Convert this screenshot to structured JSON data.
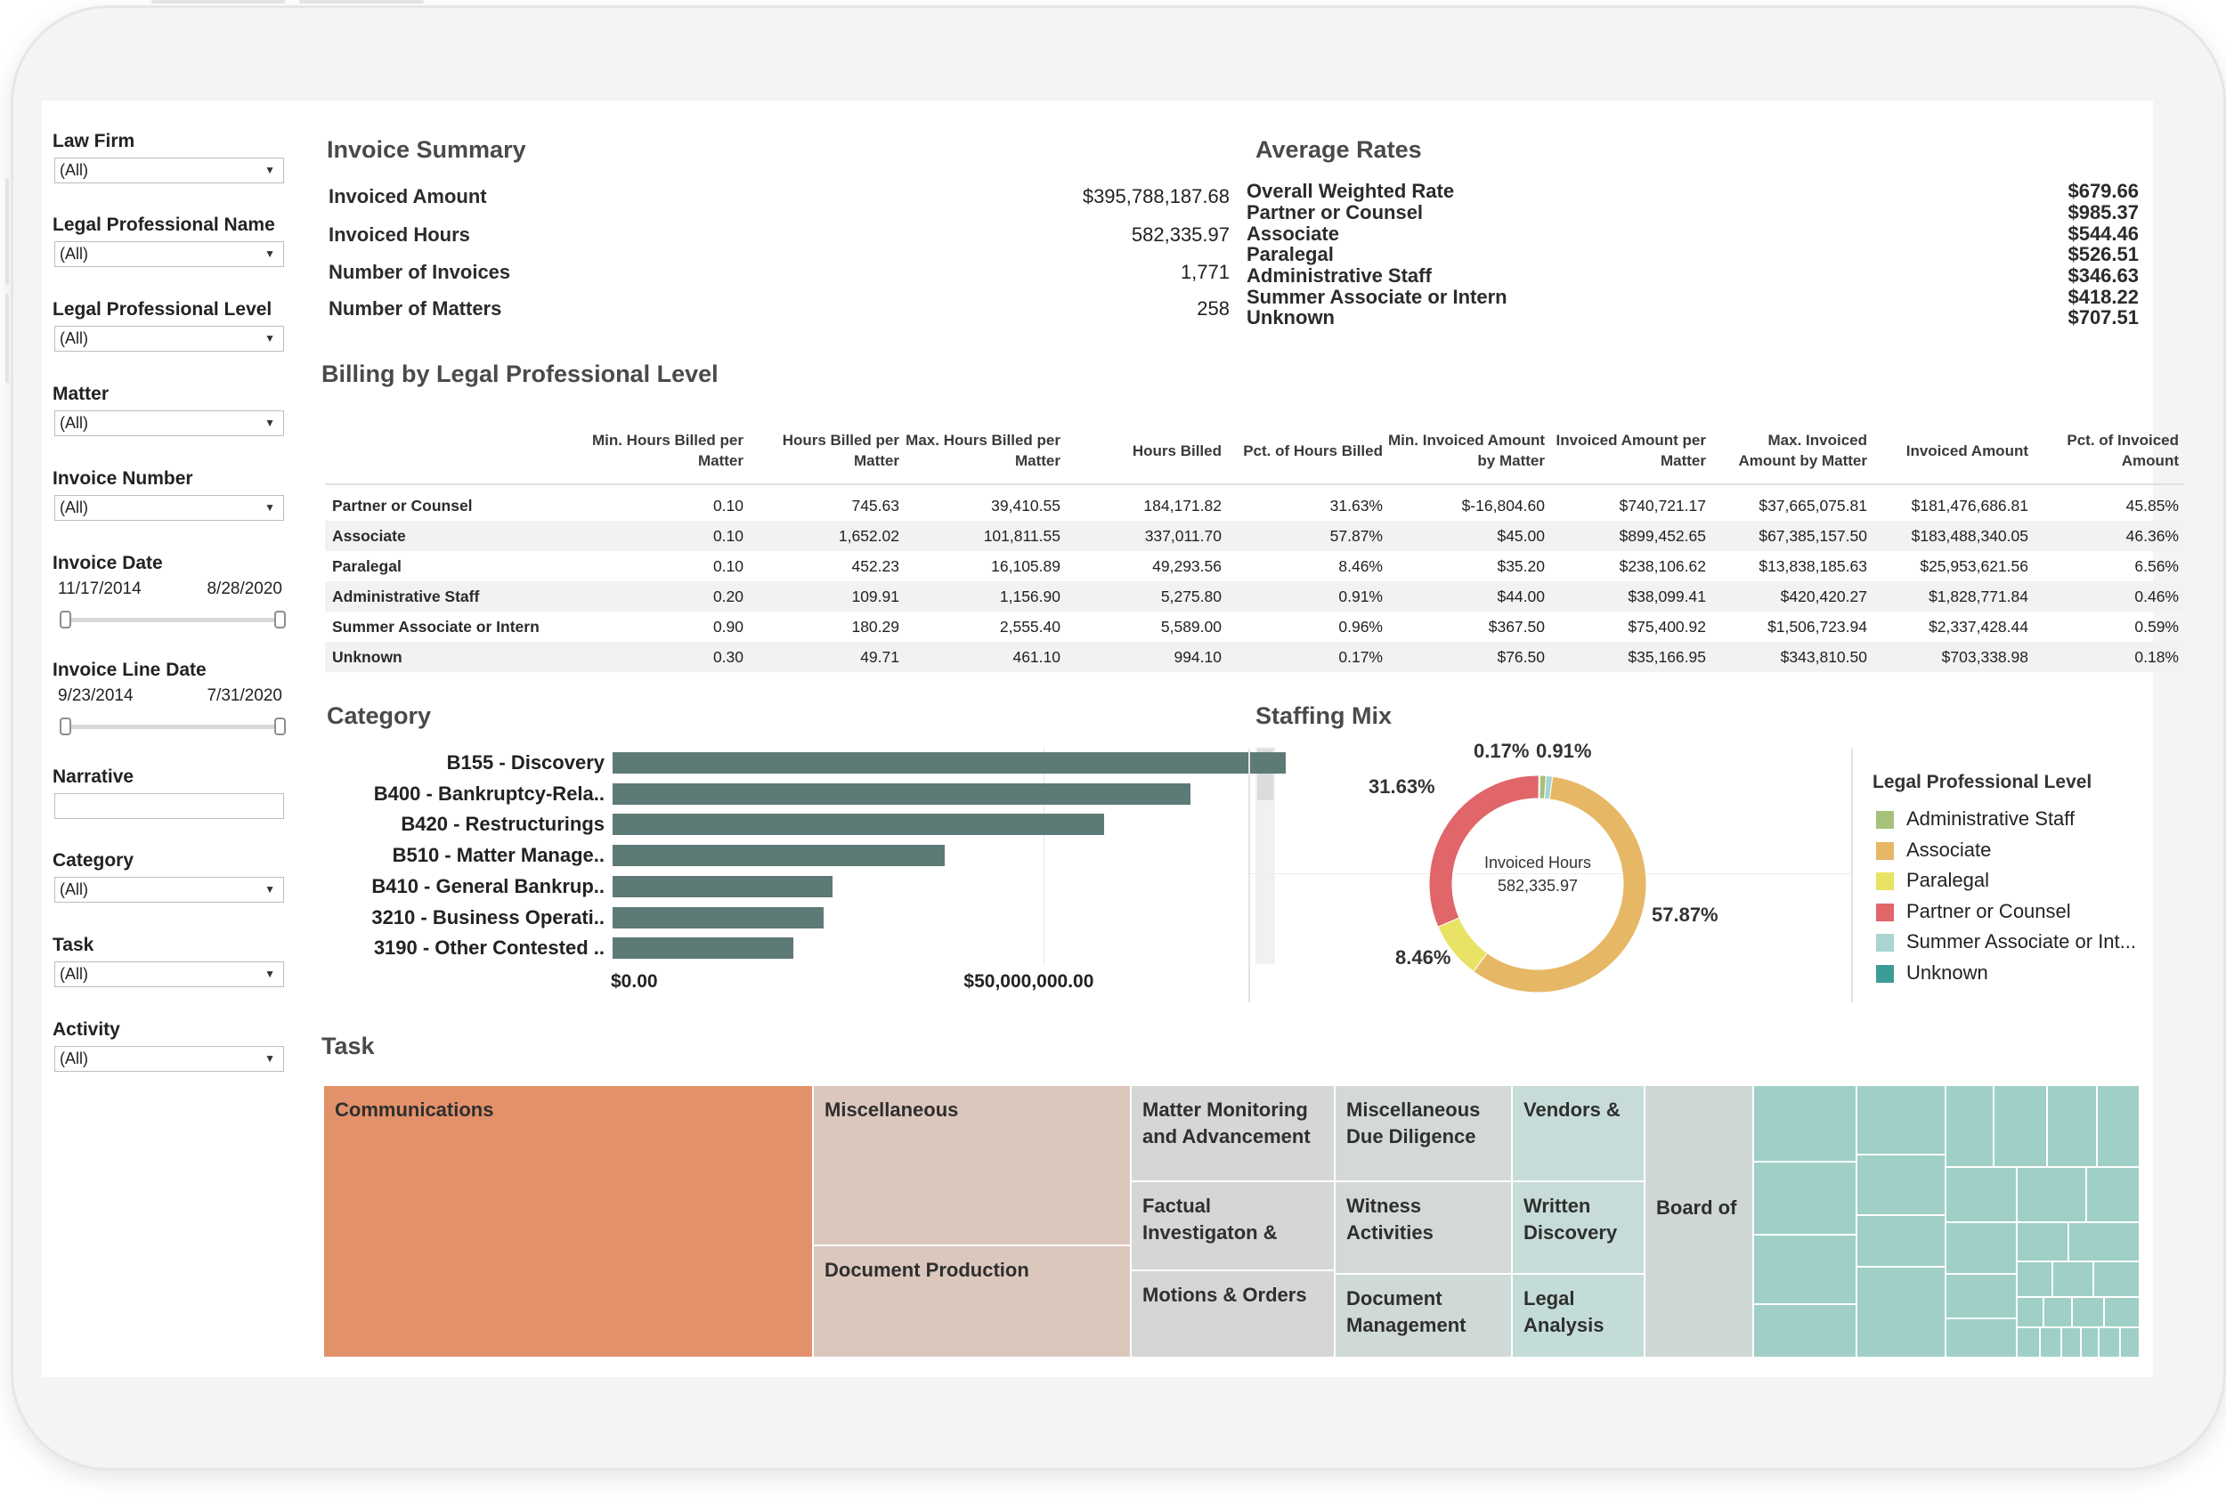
{
  "filters": [
    {
      "label": "Law Firm",
      "value": "(All)"
    },
    {
      "label": "Legal Professional Name",
      "value": "(All)"
    },
    {
      "label": "Legal Professional Level",
      "value": "(All)"
    },
    {
      "label": "Matter",
      "value": "(All)"
    },
    {
      "label": "Invoice Number",
      "value": "(All)"
    },
    {
      "label": "Invoice Date",
      "start": "11/17/2014",
      "end": "8/28/2020"
    },
    {
      "label": "Invoice Line Date",
      "start": "9/23/2014",
      "end": "7/31/2020"
    },
    {
      "label": "Narrative",
      "value": ""
    },
    {
      "label": "Category",
      "value": "(All)"
    },
    {
      "label": "Task",
      "value": "(All)"
    },
    {
      "label": "Activity",
      "value": "(All)"
    }
  ],
  "invoice_summary": {
    "title": "Invoice Summary",
    "rows": [
      {
        "label": "Invoiced Amount",
        "value": "$395,788,187.68"
      },
      {
        "label": "Invoiced Hours",
        "value": "582,335.97"
      },
      {
        "label": "Number of Invoices",
        "value": "1,771"
      },
      {
        "label": "Number of Matters",
        "value": "258"
      }
    ]
  },
  "average_rates": {
    "title": "Average Rates",
    "rows": [
      {
        "label": "Overall Weighted Rate",
        "value": "$679.66"
      },
      {
        "label": "Partner or Counsel",
        "value": "$985.37"
      },
      {
        "label": "Associate",
        "value": "$544.46"
      },
      {
        "label": "Paralegal",
        "value": "$526.51"
      },
      {
        "label": "Administrative Staff",
        "value": "$346.63"
      },
      {
        "label": "Summer Associate or Intern",
        "value": "$418.22"
      },
      {
        "label": "Unknown",
        "value": "$707.51"
      }
    ]
  },
  "billing": {
    "title": "Billing by Legal Professional Level",
    "headers": [
      "Min. Hours Billed per Matter",
      "Hours Billed per Matter",
      "Max. Hours Billed per Matter",
      "Hours Billed",
      "Pct. of Hours Billed",
      "Min. Invoiced Amount by Matter",
      "Invoiced Amount per Matter",
      "Max. Invoiced Amount by Matter",
      "Invoiced Amount",
      "Pct. of Invoiced Amount"
    ],
    "rows": [
      {
        "name": "Partner or Counsel",
        "cells": [
          "0.10",
          "745.63",
          "39,410.55",
          "184,171.82",
          "31.63%",
          "$-16,804.60",
          "$740,721.17",
          "$37,665,075.81",
          "$181,476,686.81",
          "45.85%"
        ]
      },
      {
        "name": "Associate",
        "cells": [
          "0.10",
          "1,652.02",
          "101,811.55",
          "337,011.70",
          "57.87%",
          "$45.00",
          "$899,452.65",
          "$67,385,157.50",
          "$183,488,340.05",
          "46.36%"
        ]
      },
      {
        "name": "Paralegal",
        "cells": [
          "0.10",
          "452.23",
          "16,105.89",
          "49,293.56",
          "8.46%",
          "$35.20",
          "$238,106.62",
          "$13,838,185.63",
          "$25,953,621.56",
          "6.56%"
        ]
      },
      {
        "name": "Administrative Staff",
        "cells": [
          "0.20",
          "109.91",
          "1,156.90",
          "5,275.80",
          "0.91%",
          "$44.00",
          "$38,099.41",
          "$420,420.27",
          "$1,828,771.84",
          "0.46%"
        ]
      },
      {
        "name": "Summer Associate or Intern",
        "cells": [
          "0.90",
          "180.29",
          "2,555.40",
          "5,589.00",
          "0.96%",
          "$367.50",
          "$75,400.92",
          "$1,506,723.94",
          "$2,337,428.44",
          "0.59%"
        ]
      },
      {
        "name": "Unknown",
        "cells": [
          "0.30",
          "49.71",
          "461.10",
          "994.10",
          "0.17%",
          "$76.50",
          "$35,166.95",
          "$343,810.50",
          "$703,338.98",
          "0.18%"
        ]
      }
    ]
  },
  "category": {
    "title": "Category",
    "tick_labels": [
      "$0.00",
      "$50,000,000.00"
    ]
  },
  "staffing_mix": {
    "title": "Staffing Mix",
    "center_label": "Invoiced Hours",
    "center_value": "582,335.97",
    "legend_title": "Legal Professional Level",
    "legend": [
      {
        "label": "Administrative Staff",
        "color": "#a7c17a"
      },
      {
        "label": "Associate",
        "color": "#e6b866"
      },
      {
        "label": "Paralegal",
        "color": "#e8e364"
      },
      {
        "label": "Partner or Counsel",
        "color": "#e06669"
      },
      {
        "label": "Summer Associate or Int...",
        "color": "#a9d4cf"
      },
      {
        "label": "Unknown",
        "color": "#3c9c96"
      }
    ]
  },
  "task": {
    "title": "Task",
    "labels": {
      "communications": "Communications",
      "miscellaneous": "Miscellaneous",
      "document_production": "Document Production",
      "matter_monitoring": "Matter Monitoring and Advancement",
      "factual_investigation": "Factual Investigaton &",
      "motions_orders": "Motions & Orders",
      "misc_due_diligence": "Miscellaneous Due Diligence",
      "witness_activities": "Witness Activities",
      "document_management": "Document Management",
      "vendors": "Vendors &",
      "written_discovery": "Written Discovery",
      "legal_analysis": "Legal Analysis",
      "board_of": "Board of"
    }
  },
  "chart_data": [
    {
      "type": "bar",
      "title": "Category",
      "orientation": "horizontal",
      "categories": [
        "B155 - Discovery",
        "B400 - Bankruptcy-Rela..",
        "B420 - Restructurings",
        "B510 - Matter Manage..",
        "B410 - General Bankrup..",
        "3210 - Business Operati..",
        "3190 - Other Contested .."
      ],
      "values": [
        78000000,
        67000000,
        57000000,
        38500000,
        25500000,
        24500000,
        21000000
      ],
      "xlim": [
        0,
        85000000
      ],
      "tick_labels": [
        "$0.00",
        "$50,000,000.00"
      ],
      "ticks": [
        0,
        50000000
      ],
      "grid": true
    },
    {
      "type": "pie",
      "title": "Staffing Mix",
      "donut": true,
      "series": [
        {
          "name": "Partner or Counsel",
          "value": 31.63,
          "label": "31.63%",
          "color": "#e06669"
        },
        {
          "name": "Associate",
          "value": 57.87,
          "label": "57.87%",
          "color": "#e6b866"
        },
        {
          "name": "Paralegal",
          "value": 8.46,
          "label": "8.46%",
          "color": "#e8e364"
        },
        {
          "name": "Administrative Staff",
          "value": 0.91,
          "label": "0.91%",
          "color": "#a7c17a"
        },
        {
          "name": "Summer Associate or Intern",
          "value": 0.96,
          "label": "",
          "color": "#a9d4cf"
        },
        {
          "name": "Unknown",
          "value": 0.17,
          "label": "0.17%",
          "color": "#3c9c96"
        }
      ]
    }
  ]
}
